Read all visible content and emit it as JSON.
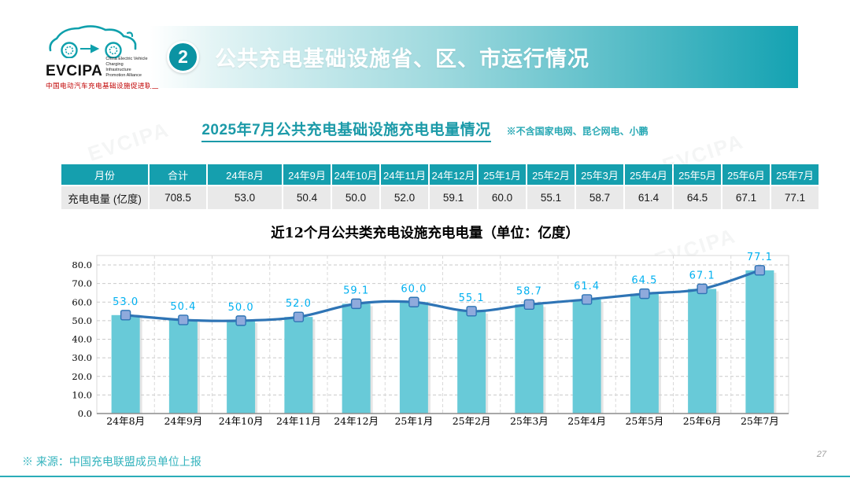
{
  "logo": {
    "brand": "EVCIPA",
    "tagline_en": "China Electric Vehicle Charging Infrastructure Promotion Alliance",
    "tagline_cn": "中国电动汽车充电基础设施促进联盟"
  },
  "header": {
    "badge": "2",
    "title": "公共充电基础设施省、区、市运行情况"
  },
  "section": {
    "subtitle": "2025年7月公共充电基础设施充电电量情况",
    "note": "※不含国家电网、昆仑网电、小鹏"
  },
  "table": {
    "headers": [
      "月份",
      "合计",
      "24年8月",
      "24年9月",
      "24年10月",
      "24年11月",
      "24年12月",
      "25年1月",
      "25年2月",
      "25年3月",
      "25年4月",
      "25年5月",
      "25年6月",
      "25年7月"
    ],
    "row_label": "充电电量 (亿度)",
    "values": [
      "708.5",
      "53.0",
      "50.4",
      "50.0",
      "52.0",
      "59.1",
      "60.0",
      "55.1",
      "58.7",
      "61.4",
      "64.5",
      "67.1",
      "77.1"
    ]
  },
  "chart_data": {
    "type": "bar+line",
    "title": "近12个月公共类充电设施充电电量（单位：亿度）",
    "categories": [
      "24年8月",
      "24年9月",
      "24年10月",
      "24年11月",
      "24年12月",
      "25年1月",
      "25年2月",
      "25年3月",
      "25年4月",
      "25年5月",
      "25年6月",
      "25年7月"
    ],
    "values": [
      53.0,
      50.4,
      50.0,
      52.0,
      59.1,
      60.0,
      55.1,
      58.7,
      61.4,
      64.5,
      67.1,
      77.1
    ],
    "ylim": [
      0,
      80
    ],
    "ytick_step": 10,
    "grid": "dashed horizontal and vertical",
    "legend": "none",
    "bar_color": "#68cad8",
    "bar_shadow_color": "#cfcfcf",
    "line_color": "#2e74b5",
    "marker_fill": "#8faadc",
    "marker_stroke": "#2e74b5",
    "label_color": "#00b0f0"
  },
  "watermark": {
    "text": "EVCIPA"
  },
  "footer": {
    "source": "※  来源：中国充电联盟成员单位上报"
  },
  "page": {
    "number": "27"
  },
  "colors": {
    "teal": "#159fae",
    "teal_dark": "#0b93a3",
    "teal_text": "#1b9aa8",
    "table_row_gray": "#e9e9e9"
  }
}
